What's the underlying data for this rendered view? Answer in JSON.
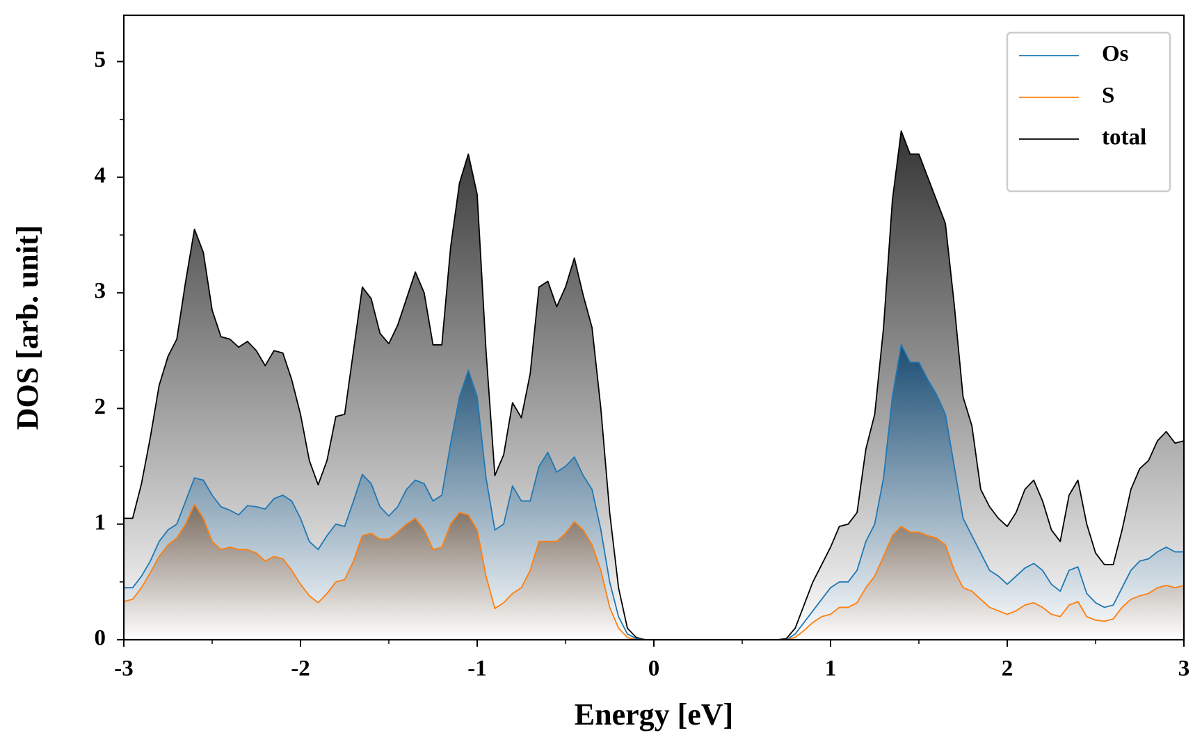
{
  "chart_data": {
    "type": "line",
    "xlabel": "Energy [eV]",
    "ylabel": "DOS [arb. unit]",
    "xlim": [
      -3,
      3
    ],
    "ylim": [
      0,
      5.4
    ],
    "xticks": [
      -3,
      -2,
      -1,
      0,
      1,
      2,
      3
    ],
    "yticks": [
      0,
      1,
      2,
      3,
      4,
      5
    ],
    "xminorticks": [
      -2.5,
      -1.5,
      -0.5,
      0.5,
      1.5,
      2.5
    ],
    "yminorticks": [
      0.5,
      1.5,
      2.5,
      3.5,
      4.5
    ],
    "legend": "upper right",
    "x": [
      -3,
      -2.95,
      -2.9,
      -2.85,
      -2.8,
      -2.75,
      -2.7,
      -2.65,
      -2.6,
      -2.55,
      -2.5,
      -2.45,
      -2.4,
      -2.35,
      -2.3,
      -2.25,
      -2.2,
      -2.15,
      -2.1,
      -2.05,
      -2,
      -1.95,
      -1.9,
      -1.85,
      -1.8,
      -1.75,
      -1.7,
      -1.65,
      -1.6,
      -1.55,
      -1.5,
      -1.45,
      -1.4,
      -1.35,
      -1.3,
      -1.25,
      -1.2,
      -1.15,
      -1.1,
      -1.05,
      -1,
      -0.95,
      -0.9,
      -0.85,
      -0.8,
      -0.75,
      -0.7,
      -0.65,
      -0.6,
      -0.55,
      -0.5,
      -0.45,
      -0.4,
      -0.35,
      -0.3,
      -0.25,
      -0.2,
      -0.15,
      -0.1,
      -0.05,
      0,
      0.05,
      0.1,
      0.15,
      0.2,
      0.25,
      0.3,
      0.35,
      0.4,
      0.45,
      0.5,
      0.55,
      0.6,
      0.65,
      0.7,
      0.75,
      0.8,
      0.85,
      0.9,
      0.95,
      1,
      1.05,
      1.1,
      1.15,
      1.2,
      1.25,
      1.3,
      1.35,
      1.4,
      1.45,
      1.5,
      1.55,
      1.6,
      1.65,
      1.7,
      1.75,
      1.8,
      1.85,
      1.9,
      1.95,
      2,
      2.05,
      2.1,
      2.15,
      2.2,
      2.25,
      2.3,
      2.35,
      2.4,
      2.45,
      2.5,
      2.55,
      2.6,
      2.65,
      2.7,
      2.75,
      2.8,
      2.85,
      2.9,
      2.95,
      3
    ],
    "series": [
      {
        "name": "total",
        "color": "#000000",
        "fill_color": "#2a2a2a",
        "values": [
          1.05,
          1.05,
          1.35,
          1.75,
          2.2,
          2.45,
          2.6,
          3.1,
          3.55,
          3.35,
          2.85,
          2.62,
          2.6,
          2.53,
          2.58,
          2.5,
          2.37,
          2.5,
          2.48,
          2.25,
          1.95,
          1.55,
          1.34,
          1.55,
          1.93,
          1.95,
          2.5,
          3.05,
          2.95,
          2.65,
          2.56,
          2.72,
          2.95,
          3.18,
          3.0,
          2.55,
          2.55,
          3.4,
          3.95,
          4.2,
          3.85,
          2.5,
          1.42,
          1.6,
          2.05,
          1.92,
          2.3,
          3.05,
          3.1,
          2.88,
          3.05,
          3.3,
          2.98,
          2.7,
          2.0,
          1.1,
          0.45,
          0.1,
          0.02,
          0,
          0,
          0,
          0,
          0,
          0,
          0,
          0,
          0,
          0,
          0,
          0,
          0,
          0,
          0,
          0,
          0.01,
          0.1,
          0.3,
          0.5,
          0.65,
          0.8,
          0.98,
          1.0,
          1.1,
          1.65,
          1.95,
          2.7,
          3.8,
          4.4,
          4.2,
          4.2,
          4.0,
          3.8,
          3.6,
          2.9,
          2.1,
          1.85,
          1.3,
          1.15,
          1.05,
          0.98,
          1.1,
          1.3,
          1.38,
          1.2,
          0.95,
          0.85,
          1.25,
          1.38,
          1.0,
          0.75,
          0.65,
          0.65,
          0.95,
          1.3,
          1.48,
          1.55,
          1.72,
          1.8,
          1.7,
          1.72
        ]
      },
      {
        "name": "Os",
        "color": "#1f77b4",
        "fill_color": "#154a72",
        "values": [
          0.45,
          0.45,
          0.55,
          0.68,
          0.85,
          0.95,
          1.0,
          1.2,
          1.4,
          1.38,
          1.25,
          1.15,
          1.12,
          1.08,
          1.16,
          1.15,
          1.13,
          1.22,
          1.25,
          1.2,
          1.05,
          0.85,
          0.78,
          0.9,
          1.0,
          0.98,
          1.2,
          1.43,
          1.35,
          1.15,
          1.07,
          1.15,
          1.3,
          1.38,
          1.35,
          1.2,
          1.25,
          1.7,
          2.1,
          2.33,
          2.1,
          1.4,
          0.95,
          1.0,
          1.33,
          1.2,
          1.2,
          1.5,
          1.62,
          1.45,
          1.5,
          1.58,
          1.42,
          1.3,
          0.95,
          0.5,
          0.2,
          0.05,
          0.01,
          0,
          0,
          0,
          0,
          0,
          0,
          0,
          0,
          0,
          0,
          0,
          0,
          0,
          0,
          0,
          0,
          0,
          0.05,
          0.15,
          0.25,
          0.35,
          0.45,
          0.5,
          0.5,
          0.6,
          0.85,
          1.0,
          1.4,
          2.1,
          2.55,
          2.4,
          2.4,
          2.25,
          2.12,
          1.95,
          1.5,
          1.05,
          0.9,
          0.75,
          0.6,
          0.55,
          0.48,
          0.55,
          0.62,
          0.66,
          0.6,
          0.48,
          0.42,
          0.6,
          0.63,
          0.4,
          0.32,
          0.28,
          0.3,
          0.45,
          0.6,
          0.68,
          0.7,
          0.76,
          0.8,
          0.76,
          0.76
        ]
      },
      {
        "name": "S",
        "color": "#ff7f0e",
        "fill_color": "#7a6a5c",
        "values": [
          0.33,
          0.35,
          0.45,
          0.58,
          0.72,
          0.82,
          0.88,
          1.0,
          1.17,
          1.05,
          0.85,
          0.78,
          0.8,
          0.78,
          0.78,
          0.75,
          0.68,
          0.72,
          0.7,
          0.6,
          0.48,
          0.38,
          0.32,
          0.4,
          0.5,
          0.52,
          0.68,
          0.9,
          0.92,
          0.87,
          0.87,
          0.93,
          1.0,
          1.05,
          0.95,
          0.78,
          0.8,
          1.0,
          1.1,
          1.08,
          0.95,
          0.55,
          0.27,
          0.32,
          0.4,
          0.45,
          0.6,
          0.85,
          0.85,
          0.85,
          0.92,
          1.02,
          0.95,
          0.82,
          0.6,
          0.28,
          0.1,
          0.02,
          0,
          0,
          0,
          0,
          0,
          0,
          0,
          0,
          0,
          0,
          0,
          0,
          0,
          0,
          0,
          0,
          0,
          0,
          0.02,
          0.08,
          0.15,
          0.2,
          0.22,
          0.28,
          0.28,
          0.32,
          0.45,
          0.55,
          0.72,
          0.9,
          0.98,
          0.93,
          0.93,
          0.9,
          0.88,
          0.82,
          0.6,
          0.45,
          0.42,
          0.35,
          0.28,
          0.25,
          0.22,
          0.25,
          0.3,
          0.32,
          0.28,
          0.22,
          0.2,
          0.3,
          0.33,
          0.2,
          0.17,
          0.16,
          0.18,
          0.28,
          0.35,
          0.38,
          0.4,
          0.45,
          0.47,
          0.45,
          0.47
        ]
      }
    ],
    "legend_order": [
      1,
      2,
      0
    ]
  }
}
